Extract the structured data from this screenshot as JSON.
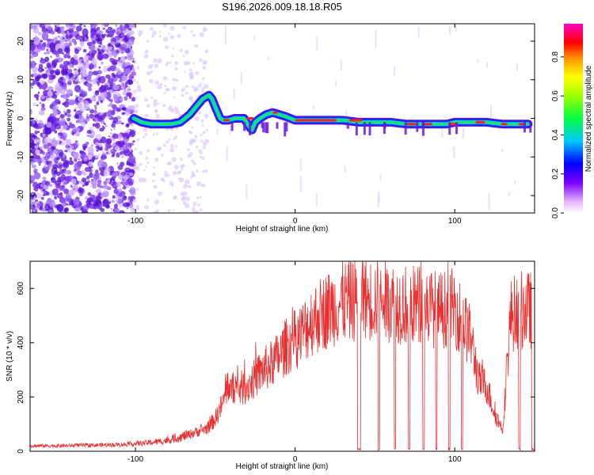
{
  "title": "S196.2026.009.18.18.R05",
  "colors": {
    "trace": "#e83030",
    "axis": "#000000",
    "speckle": "#7a2ee0"
  },
  "chart_data": [
    {
      "type": "heatmap",
      "xlabel": "Height of straight line (km)",
      "ylabel": "Frequency (Hz)",
      "xlim": [
        -166,
        150
      ],
      "ylim": [
        -24.5,
        24.5
      ],
      "xticks": [
        -100,
        0,
        100
      ],
      "yticks": [
        -20,
        -10,
        0,
        10,
        20
      ],
      "colorbar": {
        "label": "Normalized spectral amplitude",
        "range": [
          0,
          0.97
        ],
        "ticks": [
          0.0,
          0.2,
          0.4,
          0.6,
          0.8
        ]
      },
      "ridge": {
        "x": [
          -101,
          -96,
          -90,
          -84,
          -78,
          -72,
          -66,
          -62,
          -58,
          -54,
          -52,
          -50,
          -47,
          -45,
          -42,
          -38,
          -35,
          -32,
          -29,
          -27,
          -25,
          -22,
          -18,
          -14,
          -10,
          -6,
          0,
          10,
          20,
          30,
          40,
          50,
          60,
          70,
          80,
          90,
          95,
          100,
          110,
          120,
          130,
          140,
          146
        ],
        "freq": [
          0,
          -1,
          -1.5,
          -1.5,
          -1.5,
          -1,
          1,
          3,
          5,
          6,
          5,
          3,
          0,
          -0.5,
          -0.5,
          0,
          0,
          0,
          -2,
          -3,
          -1,
          0,
          1,
          1.5,
          1,
          0.5,
          -0.5,
          -0.5,
          -0.5,
          -0.5,
          -1,
          -1,
          -1,
          -1.5,
          -1.5,
          -1.5,
          -1.5,
          -1,
          -1,
          -1,
          -1.5,
          -1.5,
          -1.5
        ]
      }
    },
    {
      "type": "line",
      "xlabel": "Height of straight line (km)",
      "ylabel": "SNR (10 * v/v)",
      "xlim": [
        -166,
        150
      ],
      "ylim": [
        0,
        700
      ],
      "xticks": [
        -100,
        0,
        100
      ],
      "yticks": [
        0,
        200,
        400,
        600
      ],
      "series": [
        {
          "name": "SNR",
          "x": [
            -166,
            -150,
            -130,
            -110,
            -100,
            -90,
            -80,
            -70,
            -65,
            -60,
            -55,
            -50,
            -45,
            -42,
            -40,
            -38,
            -35,
            -30,
            -25,
            -20,
            -15,
            -10,
            -5,
            0,
            5,
            10,
            20,
            30,
            40,
            50,
            60,
            70,
            80,
            90,
            100,
            110,
            115,
            120,
            125,
            130,
            135,
            140,
            150
          ],
          "y": [
            20,
            20,
            22,
            24,
            28,
            32,
            40,
            55,
            65,
            75,
            85,
            120,
            180,
            250,
            220,
            240,
            230,
            240,
            270,
            300,
            320,
            350,
            390,
            410,
            440,
            480,
            520,
            550,
            560,
            560,
            550,
            540,
            540,
            520,
            530,
            420,
            260,
            240,
            140,
            80,
            500,
            520,
            520
          ]
        }
      ]
    }
  ]
}
